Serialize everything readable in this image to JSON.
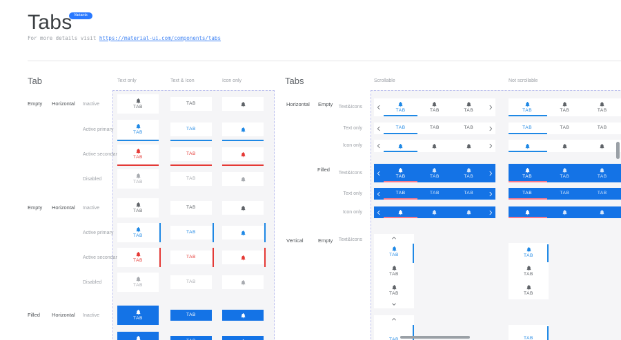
{
  "header": {
    "title": "Tabs",
    "badge": "Variants",
    "subtitle_prefix": "For more details visit ",
    "link_text": "https://material-ui.com/components/tabs"
  },
  "tab_label": "TAB",
  "colors": {
    "primary": "#1E88E5",
    "secondary": "#E53935",
    "filled_bg": "#1473E6",
    "filled_indicator": "#F77A8C",
    "inactive": "#5F6368",
    "disabled": "#A8ABB0",
    "badge_bg": "#2979FF",
    "link": "#4285F4",
    "scrollbar": "#9AA0A6"
  },
  "left_section": {
    "title": "Tab",
    "column_headers": [
      "Text only",
      "Text & Icon",
      "Icon only"
    ],
    "groups": [
      {
        "variant": "Empty",
        "orientation": "Horizontal",
        "indicator": "underline",
        "rows": [
          {
            "state_label": "Inactive",
            "state": "inactive"
          },
          {
            "state_label": "Active primary",
            "state": "primary"
          },
          {
            "state_label": "Active secondary",
            "state": "secondary"
          },
          {
            "state_label": "Disabled",
            "state": "disabled"
          }
        ]
      },
      {
        "variant": "Empty",
        "orientation": "Horizontal",
        "indicator": "side",
        "rows": [
          {
            "state_label": "Inactive",
            "state": "inactive"
          },
          {
            "state_label": "Active primary",
            "state": "primary"
          },
          {
            "state_label": "Active secondary",
            "state": "secondary"
          },
          {
            "state_label": "Disabled",
            "state": "disabled"
          }
        ]
      },
      {
        "variant": "Filled",
        "orientation": "Horizontal",
        "indicator": "underline",
        "rows": [
          {
            "state_label": "Inactive",
            "state": "filled_inactive"
          },
          {
            "state_label": "",
            "state": "filled_primary"
          }
        ]
      }
    ]
  },
  "right_section": {
    "title": "Tabs",
    "column_headers": [
      "Scrollable",
      "Not scrollable"
    ],
    "groups": [
      {
        "orientation": "Horizontal",
        "variant": "Empty",
        "fill": "empty",
        "rows": [
          {
            "label": "Text&Icons",
            "mode": "texticon"
          },
          {
            "label": "Text only",
            "mode": "text"
          },
          {
            "label": "Icon only",
            "mode": "icon"
          }
        ]
      },
      {
        "orientation": "",
        "variant": "Filled",
        "fill": "filled",
        "rows": [
          {
            "label": "Text&Icons",
            "mode": "texticon"
          },
          {
            "label": "Text only",
            "mode": "text"
          },
          {
            "label": "Icon only",
            "mode": "icon"
          }
        ]
      }
    ],
    "vertical_group": {
      "orientation": "Vertical",
      "variant": "Empty",
      "rows": [
        {
          "label": "Text&Icons",
          "mode": "texticon"
        },
        {
          "label": "",
          "mode": "text"
        }
      ]
    }
  }
}
